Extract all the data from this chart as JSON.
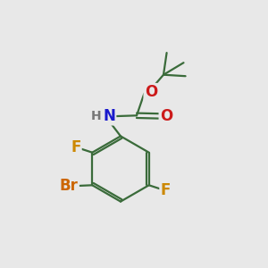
{
  "background_color": "#e8e8e8",
  "bond_color": "#3a6b3a",
  "bond_width": 1.6,
  "atom_colors": {
    "N": "#1a1acc",
    "O": "#cc1a1a",
    "F": "#cc8800",
    "Br": "#cc6600",
    "H": "#777777",
    "C": "#3a6b3a"
  },
  "font_size_large": 12,
  "font_size_medium": 10,
  "font_size_small": 9
}
